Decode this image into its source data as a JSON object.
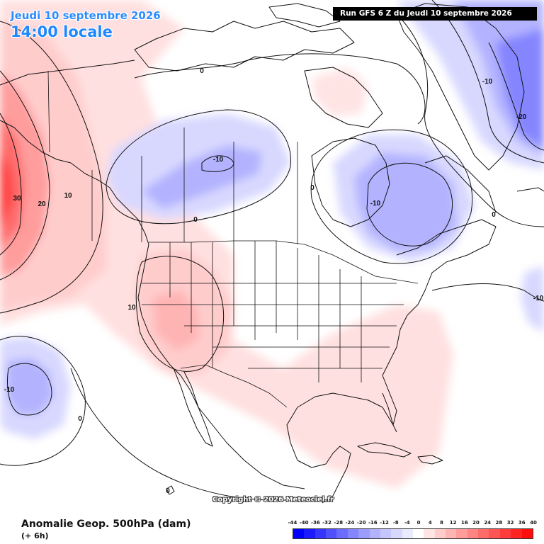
{
  "header": {
    "date": "Jeudi 10 septembre 2026",
    "time": "14:00 locale",
    "run": "Run GFS 6 Z du Jeudi 10 septembre 2026"
  },
  "copyright": "Copyright © 2026 Meteociel.fr",
  "footer": {
    "title": "Anomalie Geop. 500hPa (dam)",
    "subtitle": "(+ 6h)"
  },
  "legend": {
    "ticks": [
      "-44",
      "-40",
      "-36",
      "-32",
      "-28",
      "-24",
      "-20",
      "-16",
      "-12",
      "-8",
      "-4",
      "0",
      "4",
      "8",
      "12",
      "16",
      "20",
      "24",
      "28",
      "32",
      "36",
      "40"
    ],
    "colors": [
      "#0000ff",
      "#1a1aff",
      "#3535ff",
      "#5050ff",
      "#6b6bff",
      "#8585ff",
      "#9c9cff",
      "#b2b2ff",
      "#c6c6ff",
      "#d8d8ff",
      "#ebebff",
      "#ffffff",
      "#ffe4e4",
      "#ffcccc",
      "#ffb4b4",
      "#ff9c9c",
      "#ff8484",
      "#ff6c6c",
      "#ff5454",
      "#ff3c3c",
      "#ff2424",
      "#ff0c0c"
    ]
  },
  "contour_labels": [
    {
      "text": "30",
      "name": "label-30"
    },
    {
      "text": "20",
      "name": "label-20"
    },
    {
      "text": "10",
      "name": "label-10-alaska"
    },
    {
      "text": "10",
      "name": "label-10-west"
    },
    {
      "text": "0",
      "name": "label-0-arctic"
    },
    {
      "text": "0",
      "name": "label-0-bc"
    },
    {
      "text": "0",
      "name": "label-0-hudson"
    },
    {
      "text": "0",
      "name": "label-0-atlantic"
    },
    {
      "text": "0",
      "name": "label-0-pacific"
    },
    {
      "text": "0",
      "name": "label-0-south"
    },
    {
      "text": "-10",
      "name": "label-neg10-gulf-alaska"
    },
    {
      "text": "-10",
      "name": "label-neg10-hudson"
    },
    {
      "text": "-10",
      "name": "label-neg10-greenland"
    },
    {
      "text": "-20",
      "name": "label-neg20-greenland"
    },
    {
      "text": "-10",
      "name": "label-neg10-pacific"
    },
    {
      "text": "-10",
      "name": "label-neg10-atlantic"
    }
  ]
}
